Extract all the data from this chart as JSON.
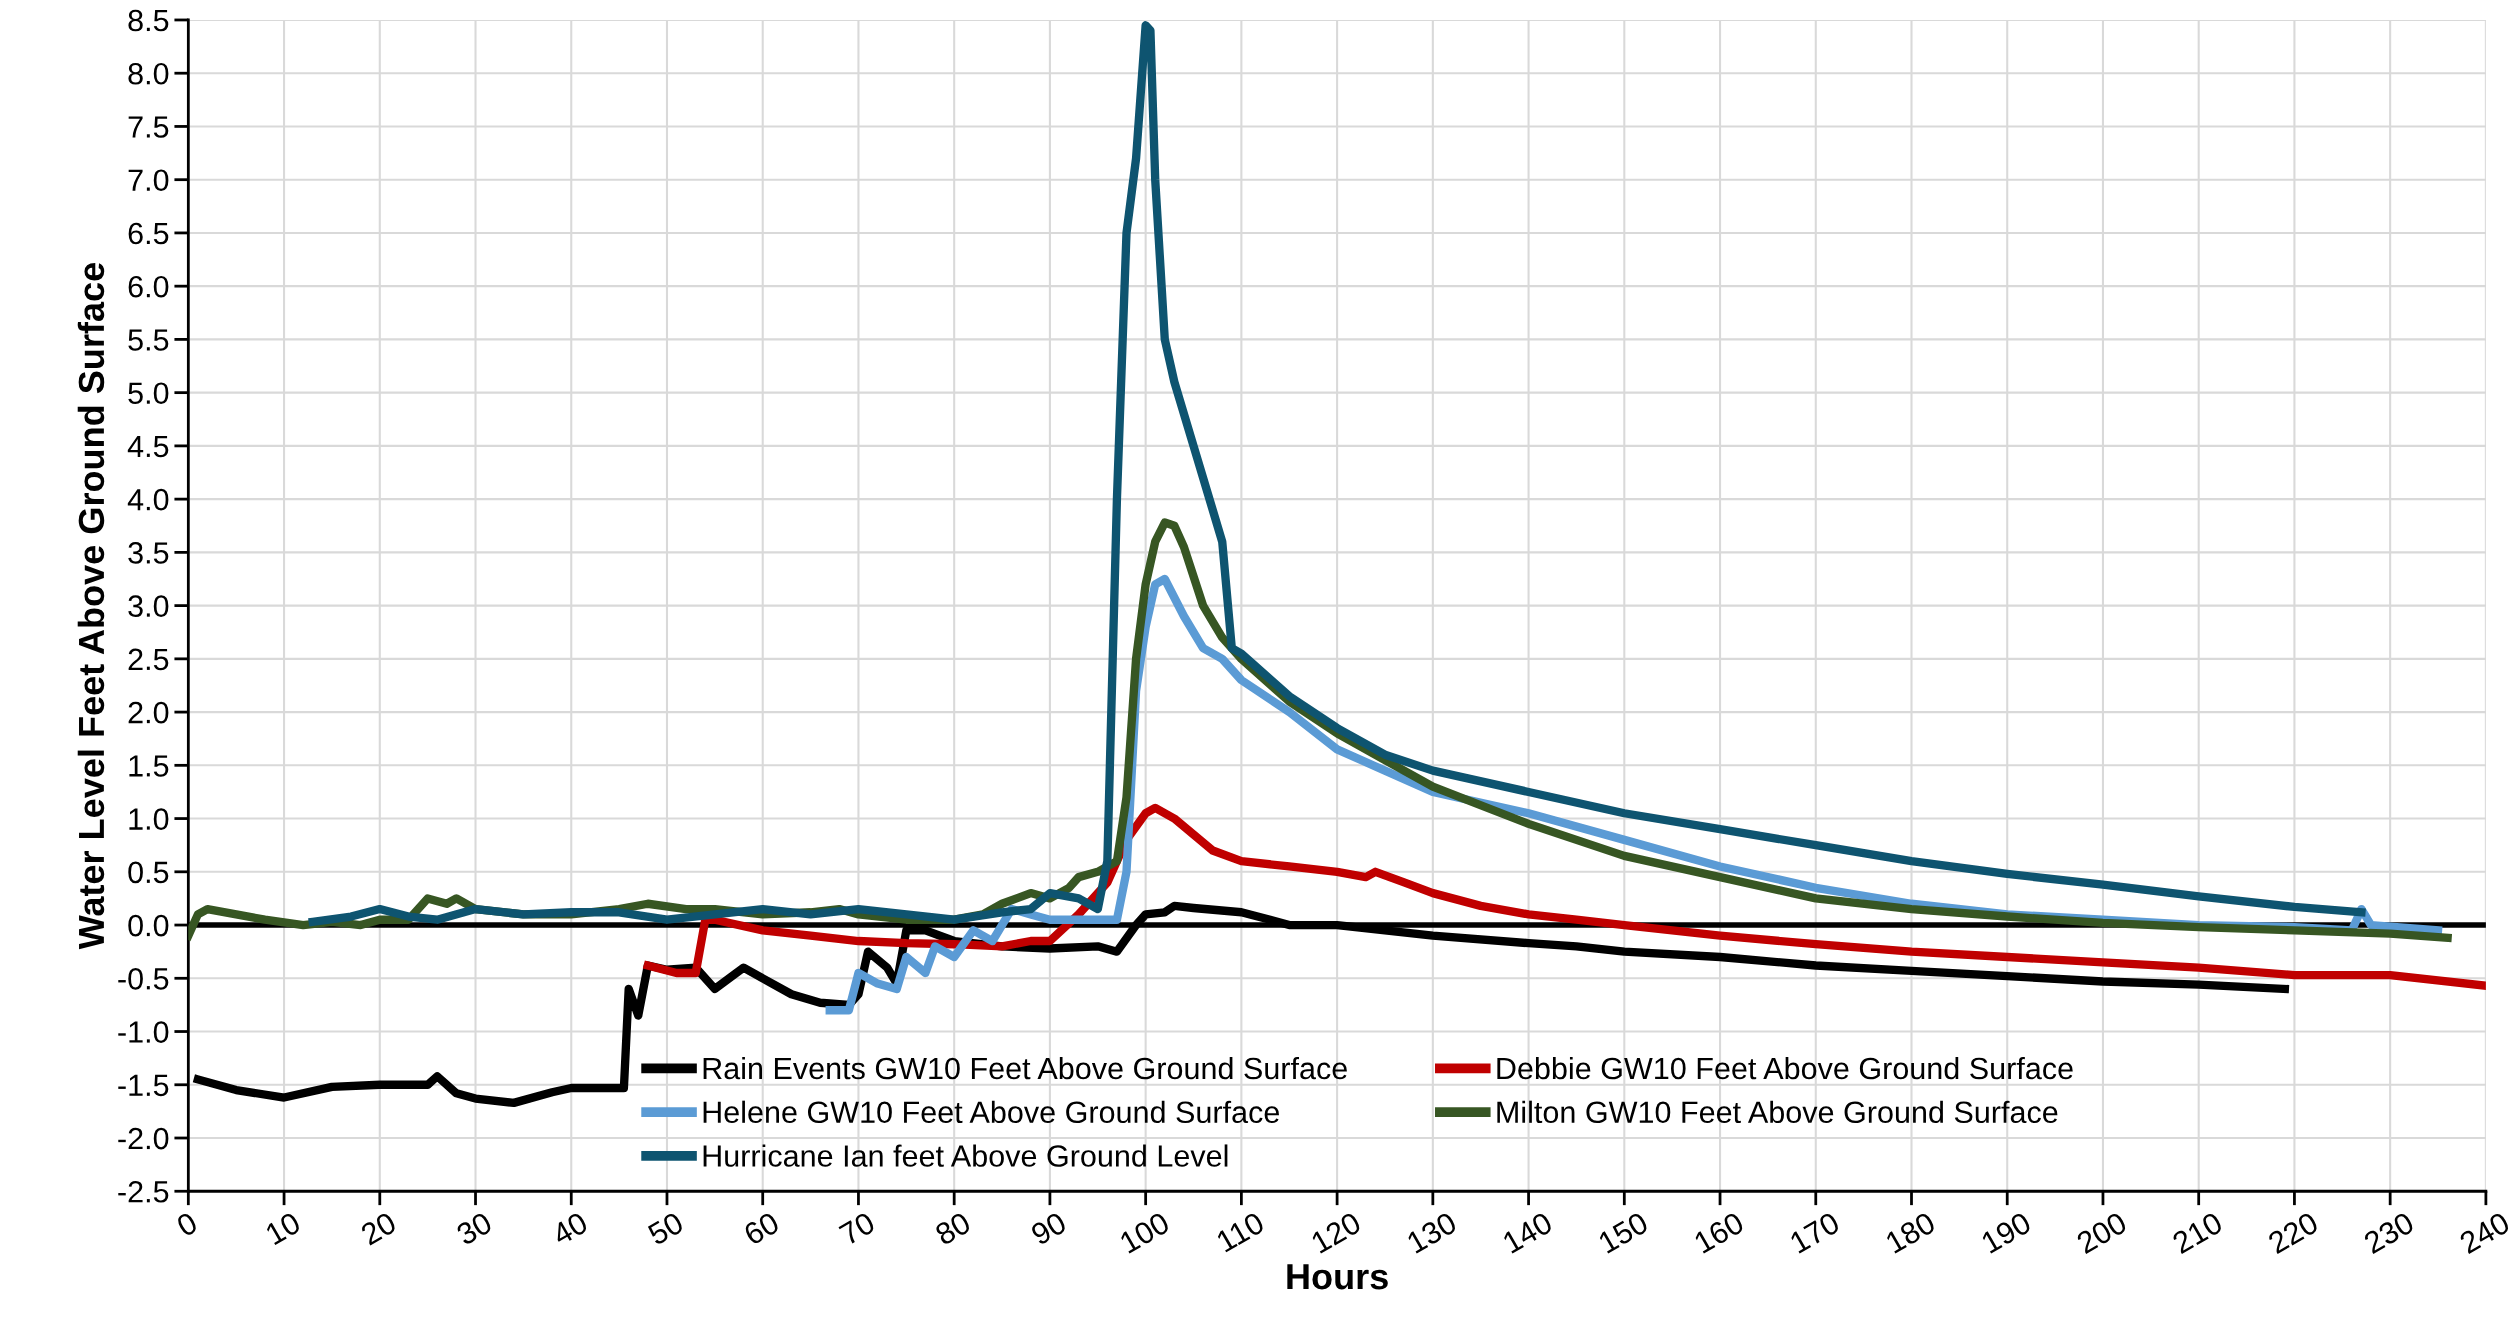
{
  "chart_data": {
    "type": "line",
    "xlabel": "Hours",
    "ylabel": "Water Level Feet Above Ground Surface",
    "xlim": [
      0,
      240
    ],
    "xticks": [
      0,
      10,
      20,
      30,
      40,
      50,
      60,
      70,
      80,
      90,
      100,
      110,
      120,
      130,
      140,
      150,
      160,
      170,
      180,
      190,
      200,
      210,
      220,
      230,
      240
    ],
    "ylim": [
      -2.5,
      8.5
    ],
    "yticks": [
      -2.5,
      {
        "value": -2,
        "label": "-2.0"
      },
      -1.5,
      {
        "value": -1,
        "label": "-1.0"
      },
      -0.5,
      {
        "value": 0,
        "label": "0.0"
      },
      0.5,
      {
        "value": 1,
        "label": "1.0"
      },
      1.5,
      {
        "value": 2,
        "label": "2.0"
      },
      2.5,
      {
        "value": 3,
        "label": "3.0"
      },
      3.5,
      {
        "value": 4,
        "label": "4.0"
      },
      4.5,
      {
        "value": 5,
        "label": "5.0"
      },
      5.5,
      {
        "value": 6,
        "label": "6.0"
      },
      6.5,
      {
        "value": 7,
        "label": "7.0"
      },
      7.5,
      {
        "value": 8,
        "label": "8.0"
      },
      8.5
    ],
    "grid": true,
    "legend": "bottom",
    "marker": "none",
    "line_style": "solid",
    "ref_lines": [
      {
        "axis": "y",
        "value": 0,
        "color": "#000000"
      }
    ],
    "series": [
      {
        "name": "Rain Events GW10 Feet Above Ground Surface",
        "color": "#000000",
        "x": [
          1,
          5,
          10,
          15,
          20,
          25,
          26,
          28,
          30,
          34,
          38,
          40,
          45,
          45.5,
          46,
          47,
          48,
          50,
          53,
          55,
          58,
          60,
          63,
          66,
          69,
          70,
          71,
          73,
          74,
          75,
          77,
          80,
          85,
          90,
          95,
          97,
          99,
          100,
          102,
          103,
          105,
          110,
          113,
          115,
          120,
          125,
          130,
          140,
          145,
          150,
          160,
          170,
          180,
          190,
          200,
          210,
          219
        ],
        "values": [
          -1.45,
          -1.55,
          -1.62,
          -1.52,
          -1.5,
          -1.5,
          -1.42,
          -1.58,
          -1.63,
          -1.67,
          -1.57,
          -1.53,
          -1.53,
          -1.53,
          -0.6,
          -0.85,
          -0.38,
          -0.42,
          -0.4,
          -0.6,
          -0.4,
          -0.5,
          -0.65,
          -0.73,
          -0.75,
          -0.65,
          -0.25,
          -0.4,
          -0.55,
          -0.05,
          -0.05,
          -0.15,
          -0.2,
          -0.22,
          -0.2,
          -0.25,
          0.0,
          0.1,
          0.12,
          0.18,
          0.16,
          0.12,
          0.05,
          0.0,
          0.0,
          -0.05,
          -0.1,
          -0.17,
          -0.2,
          -0.25,
          -0.3,
          -0.38,
          -0.43,
          -0.48,
          -0.53,
          -0.56,
          -0.6
        ]
      },
      {
        "name": "Debbie GW10 Feet Above Ground Surface",
        "color": "#c00000",
        "x": [
          48,
          51,
          53,
          54,
          55,
          60,
          65,
          70,
          75,
          80,
          85,
          88,
          90,
          93,
          96,
          98,
          100,
          101,
          103,
          105,
          107,
          110,
          115,
          120,
          123,
          124,
          127,
          130,
          135,
          140,
          145,
          150,
          160,
          170,
          180,
          190,
          200,
          210,
          220,
          230,
          240
        ],
        "values": [
          -0.38,
          -0.45,
          -0.45,
          0.05,
          0.05,
          -0.05,
          -0.1,
          -0.15,
          -0.17,
          -0.18,
          -0.2,
          -0.15,
          -0.15,
          0.1,
          0.4,
          0.8,
          1.05,
          1.1,
          1.0,
          0.85,
          0.7,
          0.6,
          0.55,
          0.5,
          0.45,
          0.5,
          0.4,
          0.3,
          0.18,
          0.1,
          0.05,
          0.0,
          -0.1,
          -0.18,
          -0.25,
          -0.3,
          -0.35,
          -0.4,
          -0.47,
          -0.47,
          -0.57
        ]
      },
      {
        "name": "Helene GW10 Feet Above Ground Surface",
        "color": "#5b9bd5",
        "x": [
          67,
          69,
          70,
          72,
          74,
          75,
          77,
          78,
          80,
          82,
          84,
          86,
          88,
          90,
          93,
          97,
          98,
          99,
          100,
          101,
          102,
          104,
          106,
          108,
          110,
          115,
          120,
          125,
          130,
          140,
          150,
          160,
          170,
          180,
          190,
          200,
          210,
          220,
          226,
          227,
          228,
          235
        ],
        "values": [
          -0.8,
          -0.8,
          -0.45,
          -0.55,
          -0.6,
          -0.3,
          -0.45,
          -0.2,
          -0.3,
          -0.05,
          -0.15,
          0.15,
          0.1,
          0.05,
          0.05,
          0.05,
          0.5,
          2.2,
          2.8,
          3.2,
          3.25,
          2.9,
          2.6,
          2.5,
          2.3,
          2.0,
          1.65,
          1.45,
          1.25,
          1.05,
          0.8,
          0.55,
          0.35,
          0.2,
          0.1,
          0.05,
          0.0,
          -0.02,
          -0.05,
          0.15,
          0.0,
          -0.05
        ]
      },
      {
        "name": "Milton GW10 Feet Above Ground Surface",
        "color": "#375623",
        "x": [
          0,
          1,
          2,
          5,
          8,
          12,
          15,
          18,
          20,
          23,
          25,
          27,
          28,
          30,
          35,
          40,
          45,
          48,
          52,
          55,
          60,
          65,
          68,
          70,
          75,
          80,
          83,
          85,
          88,
          90,
          92,
          93,
          95,
          97,
          98,
          99,
          100,
          101,
          102,
          103,
          104,
          106,
          108,
          110,
          115,
          120,
          125,
          130,
          140,
          150,
          160,
          170,
          180,
          190,
          200,
          210,
          220,
          230,
          236
        ],
        "values": [
          -0.1,
          0.1,
          0.15,
          0.1,
          0.05,
          0.0,
          0.03,
          0.0,
          0.05,
          0.05,
          0.25,
          0.2,
          0.25,
          0.15,
          0.1,
          0.1,
          0.15,
          0.2,
          0.15,
          0.15,
          0.1,
          0.12,
          0.15,
          0.1,
          0.05,
          0.05,
          0.1,
          0.2,
          0.3,
          0.25,
          0.35,
          0.45,
          0.5,
          0.6,
          1.2,
          2.5,
          3.2,
          3.6,
          3.78,
          3.75,
          3.55,
          3.0,
          2.7,
          2.5,
          2.1,
          1.8,
          1.55,
          1.3,
          0.95,
          0.65,
          0.45,
          0.25,
          0.15,
          0.08,
          0.02,
          -0.02,
          -0.05,
          -0.08,
          -0.12
        ]
      },
      {
        "name": "Hurricane Ian feet Above Ground Level",
        "color": "#0e5470",
        "x": [
          13,
          17,
          20,
          23,
          26,
          30,
          35,
          40,
          45,
          50,
          55,
          60,
          65,
          70,
          75,
          80,
          85,
          88,
          90,
          93,
          95,
          96,
          97,
          98,
          99,
          100,
          100.5,
          101,
          102,
          103,
          105,
          107,
          108,
          109,
          110,
          115,
          120,
          125,
          130,
          140,
          150,
          160,
          170,
          180,
          190,
          200,
          210,
          220,
          227
        ],
        "values": [
          0.03,
          0.08,
          0.15,
          0.08,
          0.05,
          0.15,
          0.1,
          0.12,
          0.12,
          0.05,
          0.1,
          0.15,
          0.1,
          0.15,
          0.1,
          0.05,
          0.12,
          0.15,
          0.3,
          0.25,
          0.15,
          0.6,
          4.0,
          6.5,
          7.2,
          8.45,
          8.4,
          7.0,
          5.5,
          5.1,
          4.5,
          3.9,
          3.6,
          2.6,
          2.55,
          2.15,
          1.85,
          1.6,
          1.45,
          1.25,
          1.05,
          0.9,
          0.75,
          0.6,
          0.48,
          0.38,
          0.27,
          0.17,
          0.12
        ]
      }
    ]
  }
}
